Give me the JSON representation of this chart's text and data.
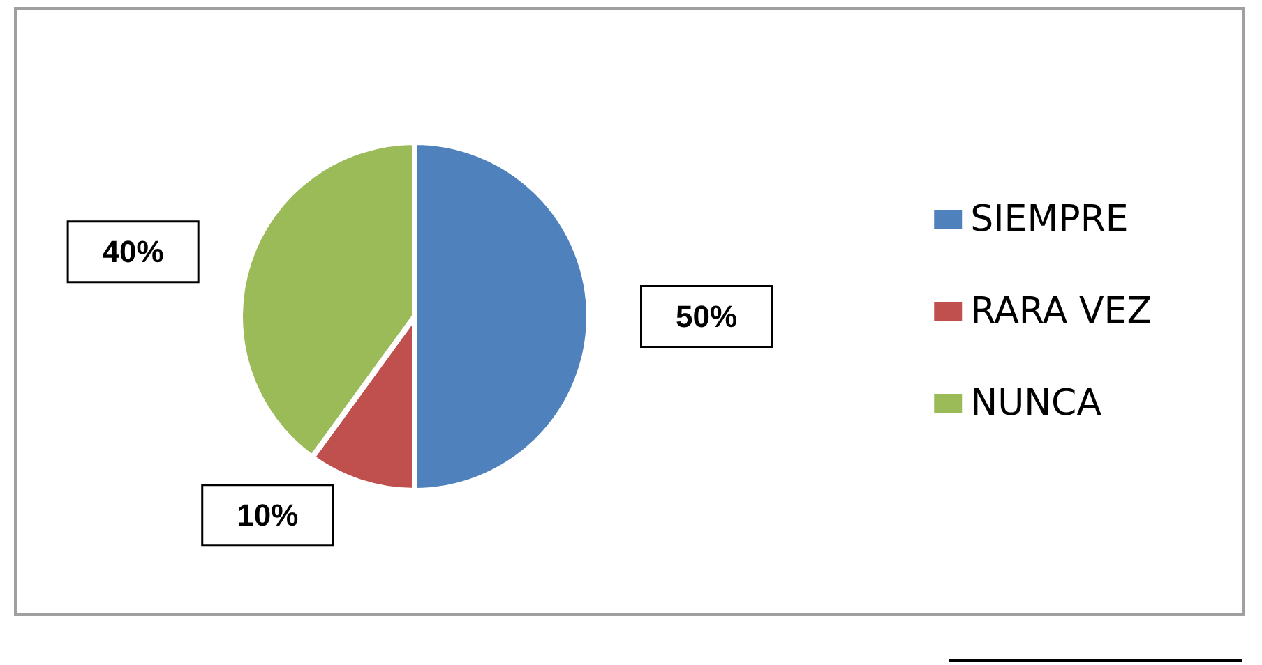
{
  "chart_data": {
    "type": "pie",
    "categories": [
      "SIEMPRE",
      "RARA VEZ",
      "NUNCA"
    ],
    "values": [
      50,
      10,
      40
    ],
    "colors": [
      "#4f81bd",
      "#c0504d",
      "#9bbb59"
    ],
    "value_labels": [
      "50%",
      "10%",
      "40%"
    ],
    "legend": "right"
  }
}
